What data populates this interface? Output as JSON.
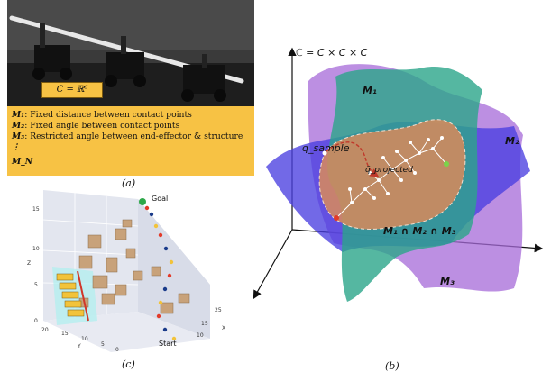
{
  "panel_a": {
    "config_label": "C = ℝ⁶",
    "constraints": [
      {
        "name": "M₁",
        "text": ": Fixed distance between contact points"
      },
      {
        "name": "M₂",
        "text": ": Fixed angle between contact points"
      },
      {
        "name": "M₃",
        "text": ": Restricted angle between end-effector & structure"
      },
      {
        "name": "⋮",
        "text": ""
      },
      {
        "name": "M_N",
        "text": ""
      }
    ],
    "caption": "(a)"
  },
  "panel_b": {
    "space_label": "ℂ = C × C × C",
    "manifolds": [
      "M₁",
      "M₂",
      "M₃"
    ],
    "intersection_label": "M₁ ∩ M₂ ∩ M₃",
    "q_sample": "q_sample",
    "q_projected": "q̃_projected",
    "caption": "(b)",
    "colors": {
      "m1": "#2aa58a",
      "m2": "#4a3fe0",
      "m3": "#9b5fd0",
      "intersection": "#d88a5a"
    }
  },
  "panel_c": {
    "goal_label": "Goal",
    "start_label": "Start",
    "axis_x": "X",
    "axis_y": "Y",
    "axis_z": "Z",
    "z_ticks": [
      "0",
      "5",
      "10",
      "15"
    ],
    "y_ticks": [
      "20",
      "15",
      "10",
      "5"
    ],
    "x_ticks": [
      "0",
      "5",
      "10",
      "15",
      "20",
      "25"
    ],
    "caption": "(c)"
  }
}
